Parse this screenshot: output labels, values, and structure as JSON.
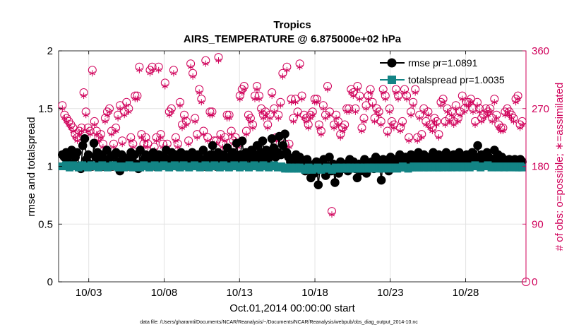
{
  "chart_data": {
    "type": "line",
    "title": "Tropics",
    "subtitle": "AIRS_TEMPERATURE @ 6.875000e+02 hPa",
    "xlabel": "Oct.01,2014 00:00:00 start",
    "ylabel": "rmse and totalspread",
    "ylabel_right": "# of obs: o=possible; ∗=assimilated",
    "footer": "data file: /Users/gharamti/Documents/NCAR/Reanalysis/~/Documents/NCAR/Reanalysis/webpub/obs_diag_output_2014-10.nc",
    "x_range_days": [
      1.0,
      32.0
    ],
    "x_ticks": [
      3,
      8,
      13,
      18,
      23,
      28
    ],
    "x_tick_labels": [
      "10/03",
      "10/08",
      "10/13",
      "10/18",
      "10/23",
      "10/28"
    ],
    "ylim": [
      0,
      2
    ],
    "y_ticks": [
      0,
      0.5,
      1,
      1.5,
      2
    ],
    "y_tick_labels": [
      "0",
      "0.5",
      "1",
      "1.5",
      "2"
    ],
    "ylim_right": [
      0,
      360
    ],
    "y_ticks_right": [
      0,
      90,
      180,
      270,
      360
    ],
    "y_tick_labels_right": [
      "0",
      "90",
      "180",
      "270",
      "360"
    ],
    "grid": true,
    "legend_position": "top-right",
    "series": [
      {
        "name": "rmse pr=1.0891",
        "axis": "left",
        "color": "#000000",
        "marker": "circle",
        "values": [
          1.1,
          1.08,
          1.12,
          1.04,
          1.1,
          1.14,
          1.02,
          1.08,
          1.12,
          1.0,
          0.98,
          1.18,
          1.24,
          1.06,
          1.1,
          1.02,
          1.0,
          1.2,
          1.08,
          1.12,
          1.04,
          1.1,
          1.0,
          1.06,
          1.14,
          1.02,
          1.08,
          1.0,
          1.1,
          1.12,
          1.04,
          0.96,
          1.1,
          1.08,
          1.02,
          1.0,
          1.06,
          1.12,
          1.04,
          1.1,
          1.02,
          0.98,
          1.14,
          1.0,
          1.06,
          1.1,
          1.02,
          1.08,
          1.04,
          1.12,
          1.0,
          1.06,
          1.1,
          1.04,
          1.02,
          1.08,
          1.14,
          1.0,
          1.06,
          1.12,
          1.04,
          1.1,
          1.0,
          1.08,
          1.12,
          1.02,
          1.06,
          1.1,
          1.04,
          1.0,
          1.12,
          1.08,
          1.04,
          1.1,
          1.02,
          1.06,
          1.14,
          1.0,
          1.08,
          1.04,
          1.1,
          1.18,
          1.06,
          1.0,
          1.12,
          1.08,
          1.02,
          1.1,
          1.04,
          1.16,
          1.08,
          1.0,
          1.12,
          1.06,
          1.2,
          1.04,
          1.1,
          1.22,
          1.06,
          1.12,
          1.0,
          1.08,
          1.14,
          1.04,
          1.1,
          1.18,
          1.06,
          1.12,
          1.22,
          1.08,
          1.14,
          1.06,
          1.1,
          1.24,
          1.16,
          1.08,
          1.12,
          1.26,
          1.1,
          1.18,
          1.28,
          1.12,
          1.08,
          1.04,
          1.0,
          1.06,
          1.1,
          1.02,
          1.08,
          1.04,
          1.0,
          0.96,
          1.06,
          1.02,
          0.9,
          1.0,
          0.94,
          1.04,
          0.84,
          0.98,
          1.02,
          1.06,
          0.92,
          1.0,
          1.08,
          0.96,
          1.02,
          0.86,
          1.0,
          0.94,
          1.04,
          1.0,
          0.98,
          1.02,
          0.96,
          1.06,
          1.0,
          1.04,
          0.98,
          0.9,
          1.02,
          0.96,
          1.0,
          1.06,
          0.94,
          1.02,
          1.0,
          1.04,
          0.98,
          1.08,
          1.02,
          1.0,
          0.88,
          1.06,
          1.04,
          1.0,
          0.96,
          1.08,
          1.02,
          1.06,
          1.04,
          1.0,
          1.1,
          1.02,
          1.06,
          1.08,
          1.04,
          1.0,
          1.1,
          1.06,
          1.02,
          1.08,
          1.12,
          1.04,
          1.0,
          1.1,
          1.06,
          1.02,
          1.08,
          1.04,
          1.12,
          1.0,
          1.06,
          1.1,
          1.04,
          1.08,
          1.02,
          1.12,
          1.06,
          1.0,
          1.08,
          1.1,
          1.04,
          1.06,
          1.12,
          1.02,
          1.08,
          1.04,
          1.1,
          1.0,
          1.06,
          1.12,
          1.04,
          1.08,
          1.18,
          1.02,
          1.1,
          1.06,
          1.04,
          1.12,
          1.08,
          1.0,
          1.06,
          1.14,
          1.04,
          1.1,
          1.02,
          1.08,
          1.06,
          1.04,
          1.02,
          1.06,
          1.04,
          1.0,
          1.06,
          1.04,
          1.02,
          1.06,
          1.04
        ]
      },
      {
        "name": "totalspread pr=1.0035",
        "axis": "left",
        "color": "#138485",
        "marker": "square",
        "values": [
          1.0,
          1.0,
          1.01,
          1.0,
          0.99,
          1.0,
          1.01,
          1.0,
          1.0,
          0.99,
          1.0,
          1.01,
          1.0,
          1.0,
          0.99,
          1.0,
          1.01,
          1.0,
          1.0,
          1.0,
          0.99,
          1.0,
          1.01,
          1.0,
          1.0,
          0.99,
          1.0,
          1.0,
          1.01,
          1.0,
          1.0,
          0.99,
          1.0,
          1.0,
          0.99,
          1.0,
          1.0,
          1.01,
          1.0,
          0.99,
          1.0,
          1.0,
          1.0,
          0.99,
          1.0,
          1.01,
          1.0,
          1.0,
          0.99,
          1.0,
          1.0,
          1.01,
          1.0,
          0.99,
          1.0,
          1.0,
          1.01,
          1.0,
          1.0,
          0.99,
          1.0,
          1.0,
          1.01,
          1.0,
          1.0,
          0.99,
          1.0,
          1.01,
          1.0,
          1.0,
          0.99,
          1.0,
          1.0,
          1.01,
          1.0,
          1.0,
          0.99,
          1.0,
          1.0,
          1.01,
          1.0,
          0.99,
          1.0,
          1.0,
          1.01,
          1.0,
          1.0,
          0.99,
          1.0,
          1.01,
          1.0,
          1.0,
          0.99,
          1.0,
          1.0,
          1.01,
          1.0,
          1.0,
          0.99,
          1.0,
          1.01,
          1.0,
          1.0,
          0.99,
          1.0,
          1.0,
          1.01,
          1.0,
          1.0,
          0.99,
          1.0,
          1.01,
          1.0,
          1.0,
          0.99,
          1.0,
          1.0,
          1.01,
          1.0,
          0.99,
          1.0,
          1.0,
          0.99,
          0.98,
          0.99,
          0.98,
          0.99,
          0.98,
          0.98,
          0.99,
          0.98,
          0.99,
          0.98,
          0.98,
          0.97,
          0.98,
          0.99,
          0.98,
          0.97,
          0.98,
          0.98,
          0.99,
          0.98,
          0.97,
          0.98,
          0.98,
          0.99,
          0.98,
          0.98,
          0.97,
          0.98,
          0.99,
          0.98,
          0.98,
          0.99,
          0.98,
          0.98,
          0.99,
          0.98,
          0.99,
          0.98,
          0.98,
          0.99,
          0.98,
          0.99,
          0.98,
          0.98,
          0.99,
          0.98,
          0.99,
          0.99,
          0.98,
          0.99,
          0.99,
          0.98,
          0.99,
          0.99,
          0.98,
          0.99,
          0.99,
          0.99,
          0.98,
          0.99,
          0.99,
          0.99,
          0.98,
          0.99,
          0.99,
          1.0,
          0.99,
          0.99,
          0.98,
          0.99,
          0.99,
          1.0,
          0.99,
          0.99,
          0.99,
          1.0,
          0.99,
          0.99,
          1.0,
          0.99,
          0.99,
          1.0,
          0.99,
          1.0,
          0.99,
          0.99,
          1.0,
          0.99,
          1.0,
          1.0,
          0.99,
          1.0,
          0.99,
          1.0,
          1.0,
          0.99,
          1.0,
          1.0,
          0.99,
          1.0,
          1.0,
          1.0,
          0.99,
          1.0,
          1.0,
          1.01,
          1.0,
          1.0,
          0.99,
          1.0,
          1.0,
          1.0,
          1.01,
          1.0,
          0.99,
          1.0,
          1.0,
          1.0,
          0.99,
          1.0,
          1.0,
          0.99,
          1.0,
          1.0,
          0.99,
          1.0,
          1.0,
          1.0,
          0.99,
          0.99,
          1.0,
          0.99
        ]
      },
      {
        "name": "possible",
        "axis": "right",
        "color": "#d0005a",
        "marker": "circle-open",
        "values": [
          275,
          260,
          255,
          250,
          245,
          240,
          230,
          225,
          235,
          240,
          295,
          265,
          240,
          235,
          330,
          250,
          235,
          225,
          230,
          215,
          255,
          265,
          270,
          235,
          215,
          240,
          260,
          275,
          220,
          265,
          280,
          270,
          225,
          215,
          290,
          290,
          335,
          230,
          215,
          225,
          215,
          330,
          335,
          210,
          225,
          335,
          230,
          215,
          310,
          215,
          265,
          270,
          330,
          225,
          215,
          280,
          245,
          260,
          250,
          220,
          340,
          325,
          255,
          230,
          300,
          285,
          235,
          345,
          225,
          265,
          265,
          220,
          220,
          350,
          230,
          215,
          225,
          260,
          260,
          235,
          220,
          225,
          215,
          290,
          300,
          305,
          235,
          260,
          255,
          245,
          290,
          305,
          290,
          270,
          260,
          265,
          245,
          260,
          295,
          270,
          225,
          260,
          280,
          325,
          215,
          335,
          215,
          285,
          255,
          285,
          265,
          340,
          290,
          260,
          255,
          245,
          260,
          265,
          285,
          285,
          245,
          235,
          275,
          260,
          305,
          265,
          110,
          245,
          260,
          250,
          230,
          240,
          245,
          270,
          270,
          300,
          295,
          270,
          305,
          290,
          240,
          255,
          275,
          290,
          300,
          280,
          255,
          270,
          265,
          250,
          300,
          290,
          235,
          270,
          250,
          245,
          300,
          290,
          240,
          250,
          300,
          290,
          225,
          265,
          280,
          300,
          225,
          260,
          230,
          270,
          250,
          265,
          245,
          240,
          255,
          250,
          230,
          280,
          285,
          250,
          270,
          255,
          265,
          250,
          275,
          255,
          265,
          290,
          270,
          280,
          280,
          285,
          270,
          250,
          280,
          270,
          255,
          260,
          270,
          265,
          270,
          255,
          285,
          260,
          245,
          240,
          240,
          265,
          270,
          265,
          260,
          255,
          285,
          290,
          245,
          250
        ]
      },
      {
        "name": "assimilated",
        "axis": "right",
        "color": "#d0005a",
        "marker": "asterisk",
        "values": [
          270,
          255,
          250,
          245,
          240,
          235,
          225,
          220,
          230,
          235,
          290,
          260,
          235,
          230,
          325,
          245,
          230,
          220,
          225,
          210,
          250,
          260,
          265,
          230,
          210,
          235,
          255,
          270,
          215,
          260,
          275,
          265,
          220,
          210,
          285,
          285,
          330,
          225,
          210,
          220,
          210,
          325,
          330,
          205,
          220,
          330,
          225,
          210,
          305,
          210,
          260,
          265,
          325,
          220,
          210,
          275,
          240,
          255,
          245,
          215,
          335,
          320,
          250,
          225,
          295,
          280,
          230,
          340,
          220,
          260,
          260,
          215,
          215,
          345,
          225,
          210,
          220,
          255,
          255,
          230,
          215,
          220,
          210,
          285,
          295,
          300,
          230,
          255,
          250,
          240,
          285,
          300,
          285,
          265,
          255,
          260,
          240,
          255,
          290,
          265,
          220,
          255,
          275,
          320,
          210,
          330,
          210,
          280,
          250,
          280,
          260,
          335,
          285,
          255,
          250,
          240,
          255,
          260,
          280,
          280,
          240,
          230,
          270,
          255,
          300,
          260,
          105,
          240,
          255,
          245,
          225,
          235,
          240,
          265,
          265,
          295,
          290,
          265,
          300,
          285,
          235,
          250,
          270,
          285,
          295,
          275,
          250,
          265,
          260,
          245,
          295,
          285,
          230,
          265,
          245,
          240,
          295,
          285,
          235,
          245,
          295,
          285,
          220,
          260,
          275,
          295,
          220,
          255,
          225,
          265,
          245,
          260,
          240,
          235,
          250,
          245,
          225,
          275,
          280,
          245,
          265,
          250,
          260,
          245,
          270,
          250,
          260,
          285,
          265,
          275,
          275,
          280,
          265,
          245,
          275,
          265,
          250,
          255,
          265,
          260,
          265,
          250,
          280,
          255,
          240,
          235,
          235,
          260,
          265,
          260,
          255,
          250,
          280,
          285,
          240,
          245
        ]
      }
    ]
  }
}
